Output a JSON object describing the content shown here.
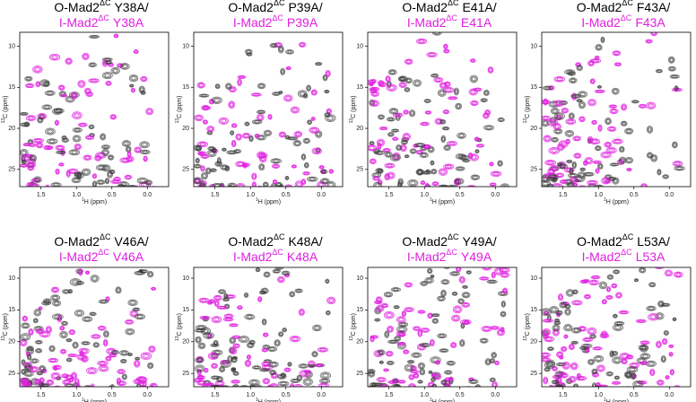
{
  "axes": {
    "x_label": {
      "sup": "1",
      "text": "H (ppm)"
    },
    "y_label": {
      "sup": "13",
      "text": "C (ppm)"
    },
    "xlim": [
      1.8,
      -0.3
    ],
    "xticks": [
      1.5,
      {
        "value": 1,
        "label": "1.0"
      },
      0.5,
      {
        "value": 0,
        "label": "0.0"
      }
    ],
    "ylim": [
      8.3,
      27.1
    ],
    "yticks": [
      10,
      15,
      20,
      25
    ]
  },
  "panels": [
    {
      "line1": [
        "O-Mad2",
        "ΔC",
        "Y38A/"
      ],
      "line2": [
        "I-Mad2",
        "ΔC",
        "Y38A"
      ]
    },
    {
      "line1": [
        "O-Mad2",
        "ΔC",
        "P39A/"
      ],
      "line2": [
        "I-Mad2",
        "ΔC",
        "P39A"
      ]
    },
    {
      "line1": [
        "O-Mad2",
        "ΔC",
        "E41A/"
      ],
      "line2": [
        "I-Mad2",
        "ΔC",
        "E41A"
      ]
    },
    {
      "line1": [
        "O-Mad2",
        "ΔC",
        "F43A/"
      ],
      "line2": [
        "I-Mad2",
        "ΔC",
        "F43A"
      ]
    },
    {
      "line1": [
        "O-Mad2",
        "ΔC",
        "V46A/"
      ],
      "line2": [
        "I-Mad2",
        "ΔC",
        "V46A"
      ]
    },
    {
      "line1": [
        "O-Mad2",
        "ΔC",
        "K48A/"
      ],
      "line2": [
        "I-Mad2",
        "ΔC",
        "K48A"
      ]
    },
    {
      "line1": [
        "O-Mad2",
        "ΔC",
        "Y49A/"
      ],
      "line2": [
        "I-Mad2",
        "ΔC",
        "Y49A"
      ]
    },
    {
      "line1": [
        "O-Mad2",
        "ΔC",
        "L53A/"
      ],
      "line2": [
        "I-Mad2",
        "ΔC",
        "L53A"
      ]
    }
  ]
}
